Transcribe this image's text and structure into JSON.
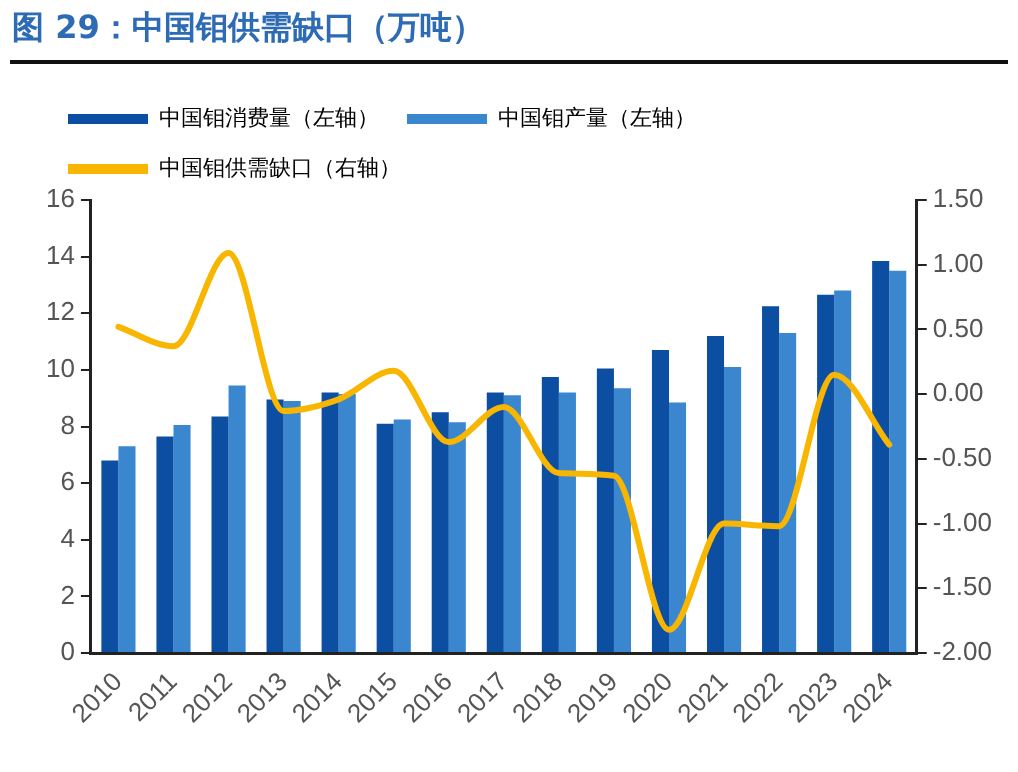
{
  "chart_data": {
    "type": "bar",
    "title": "图 29：中国钼供需缺口（万吨）",
    "categories": [
      "2010",
      "2011",
      "2012",
      "2013",
      "2014",
      "2015",
      "2016",
      "2017",
      "2018",
      "2019",
      "2020",
      "2021",
      "2022",
      "2023",
      "2024"
    ],
    "series": [
      {
        "name": "中国钼消费量（左轴）",
        "color": "#0b4ea2",
        "values": [
          6.8,
          7.65,
          8.35,
          8.95,
          9.2,
          8.1,
          8.5,
          9.2,
          9.75,
          10.05,
          10.7,
          11.2,
          12.25,
          12.65,
          13.85
        ]
      },
      {
        "name": "中国钼产量（左轴）",
        "color": "#3a87d0",
        "values": [
          7.3,
          8.05,
          9.45,
          8.9,
          9.15,
          8.25,
          8.15,
          9.1,
          9.2,
          9.35,
          8.85,
          10.1,
          11.3,
          12.8,
          13.5
        ]
      },
      {
        "name": "中国钼供需缺口（右轴）",
        "type": "line",
        "axis": "y2",
        "color": "#f8b600",
        "values": [
          0.52,
          0.37,
          1.09,
          -0.13,
          -0.04,
          0.18,
          -0.37,
          -0.1,
          -0.61,
          -0.63,
          -1.82,
          -1.0,
          -1.02,
          0.15,
          -0.39
        ]
      }
    ],
    "ylim": [
      0,
      16
    ],
    "yticks": [
      0,
      2,
      4,
      6,
      8,
      10,
      12,
      14,
      16
    ],
    "y2lim": [
      -2,
      1.5
    ],
    "y2ticks": [
      {
        "value": -2,
        "label": "-2.00"
      },
      {
        "value": -1.5,
        "label": "-1.50"
      },
      {
        "value": -1,
        "label": "-1.00"
      },
      {
        "value": -0.5,
        "label": "-0.50"
      },
      {
        "value": 0,
        "label": "0.00"
      },
      {
        "value": 0.5,
        "label": "0.50"
      },
      {
        "value": 1,
        "label": "1.00"
      },
      {
        "value": 1.5,
        "label": "1.50"
      }
    ],
    "grid": false,
    "legend": "top",
    "marker": "none"
  }
}
